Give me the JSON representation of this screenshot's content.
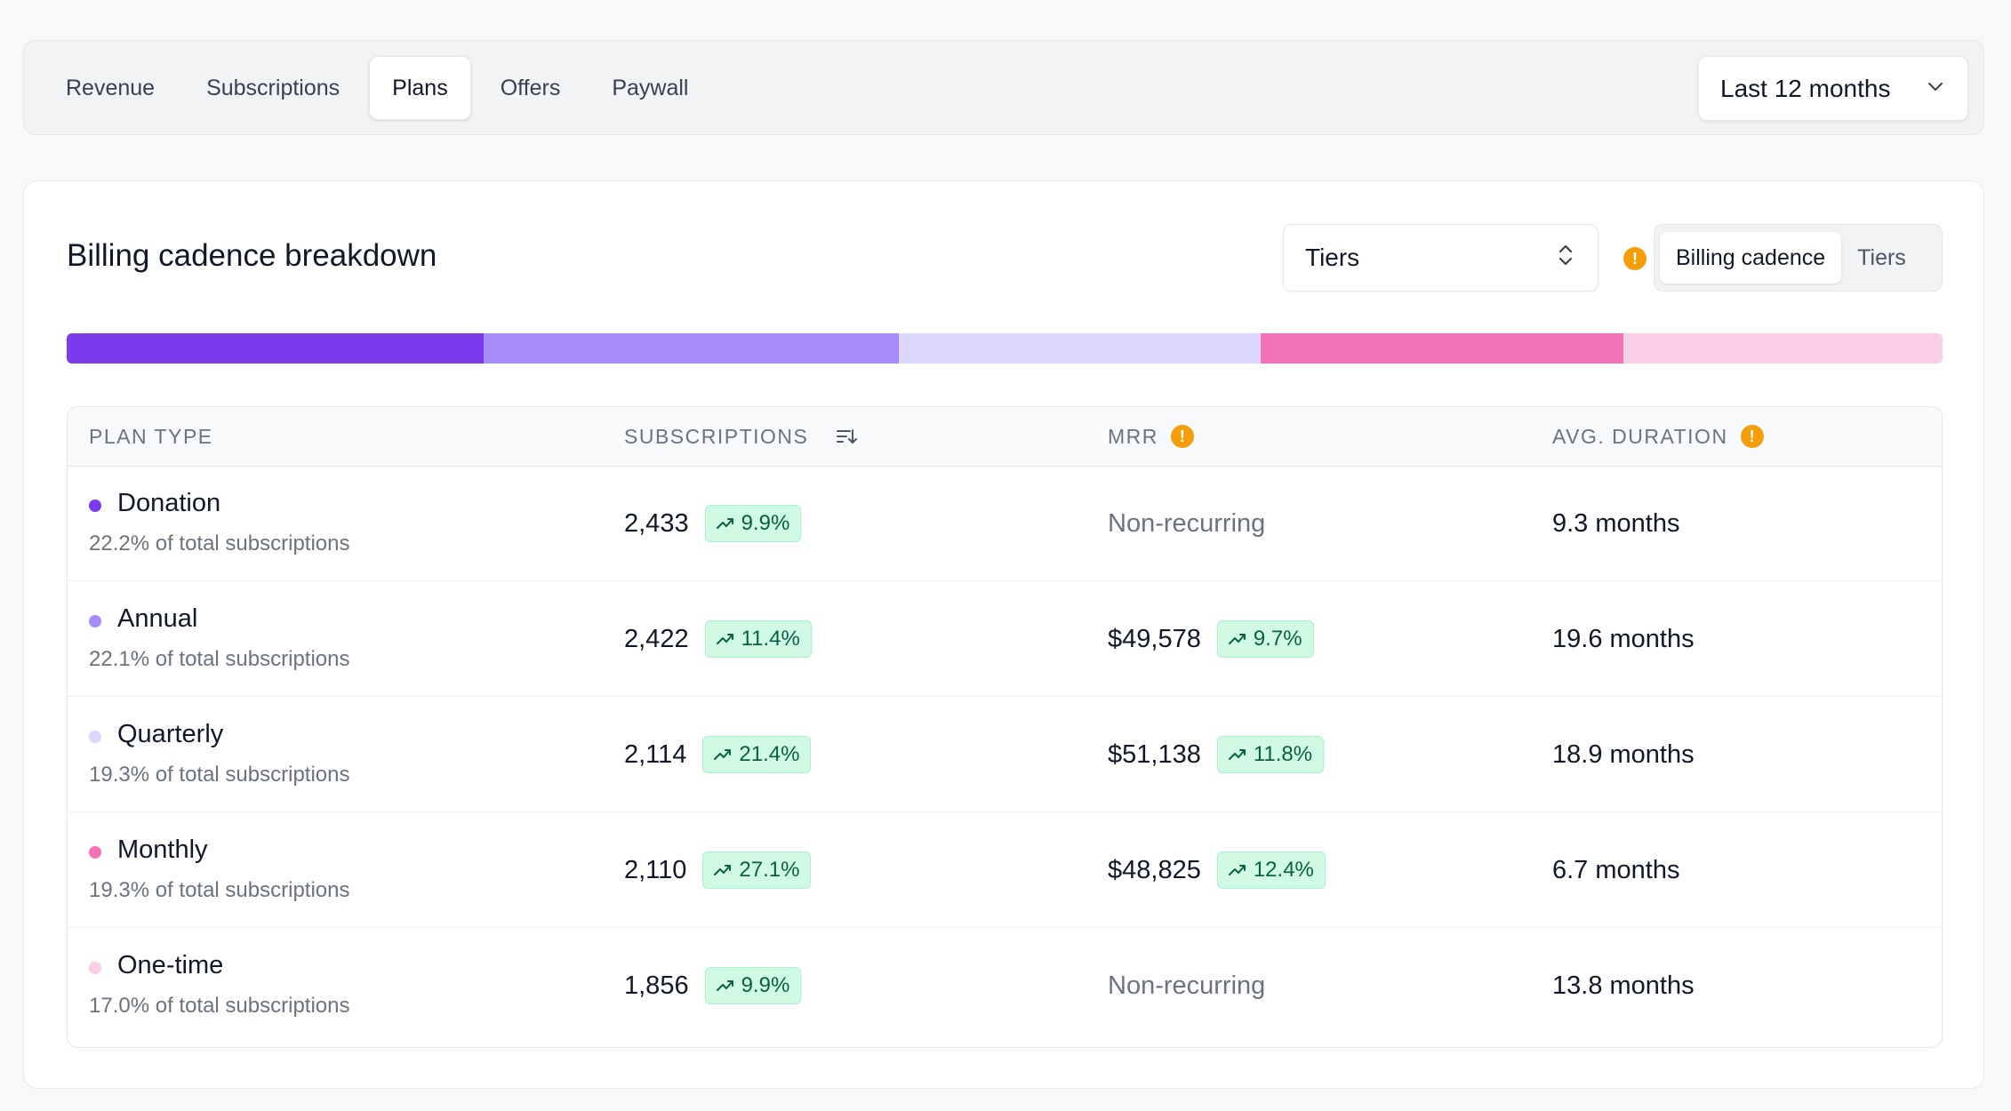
{
  "nav": {
    "tabs": [
      {
        "label": "Revenue"
      },
      {
        "label": "Subscriptions"
      },
      {
        "label": "Plans"
      },
      {
        "label": "Offers"
      },
      {
        "label": "Paywall"
      }
    ],
    "active_tab": "Plans",
    "date_range": "Last 12 months"
  },
  "card": {
    "title": "Billing cadence breakdown",
    "tier_select": "Tiers",
    "toggle": {
      "billing_cadence": "Billing cadence",
      "tiers": "Tiers",
      "active": "Billing cadence"
    }
  },
  "breakdown_bar": [
    {
      "plan": "Donation",
      "share": 22.2,
      "color": "#7c3aed"
    },
    {
      "plan": "Annual",
      "share": 22.1,
      "color": "#a78bfa"
    },
    {
      "plan": "Quarterly",
      "share": 19.3,
      "color": "#ddd6fe"
    },
    {
      "plan": "Monthly",
      "share": 19.3,
      "color": "#f472b6"
    },
    {
      "plan": "One-time",
      "share": 17.0,
      "color": "#fbcfe8"
    }
  ],
  "table": {
    "headers": {
      "plan_type": "PLAN TYPE",
      "subscriptions": "SUBSCRIPTIONS",
      "mrr": "MRR",
      "avg_duration": "AVG. DURATION"
    },
    "rows": [
      {
        "name": "Donation",
        "share_text": "22.2% of total subscriptions",
        "color": "#7c3aed",
        "subscriptions": "2,433",
        "subs_change": "9.9%",
        "mrr": "Non-recurring",
        "mrr_change": null,
        "duration": "9.3 months"
      },
      {
        "name": "Annual",
        "share_text": "22.1% of total subscriptions",
        "color": "#a78bfa",
        "subscriptions": "2,422",
        "subs_change": "11.4%",
        "mrr": "$49,578",
        "mrr_change": "9.7%",
        "duration": "19.6 months"
      },
      {
        "name": "Quarterly",
        "share_text": "19.3% of total subscriptions",
        "color": "#ddd6fe",
        "subscriptions": "2,114",
        "subs_change": "21.4%",
        "mrr": "$51,138",
        "mrr_change": "11.8%",
        "duration": "18.9 months"
      },
      {
        "name": "Monthly",
        "share_text": "19.3% of total subscriptions",
        "color": "#f472b6",
        "subscriptions": "2,110",
        "subs_change": "27.1%",
        "mrr": "$48,825",
        "mrr_change": "12.4%",
        "duration": "6.7 months"
      },
      {
        "name": "One-time",
        "share_text": "17.0% of total subscriptions",
        "color": "#fbcfe8",
        "subscriptions": "1,856",
        "subs_change": "9.9%",
        "mrr": "Non-recurring",
        "mrr_change": null,
        "duration": "13.8 months"
      }
    ]
  },
  "icons": {
    "date_range": "chevron-down-icon",
    "tier_select": "chevron-up-down-icon",
    "info": "exclamation-circle-icon",
    "sort": "sort-icon",
    "trend": "trending-up-icon"
  }
}
